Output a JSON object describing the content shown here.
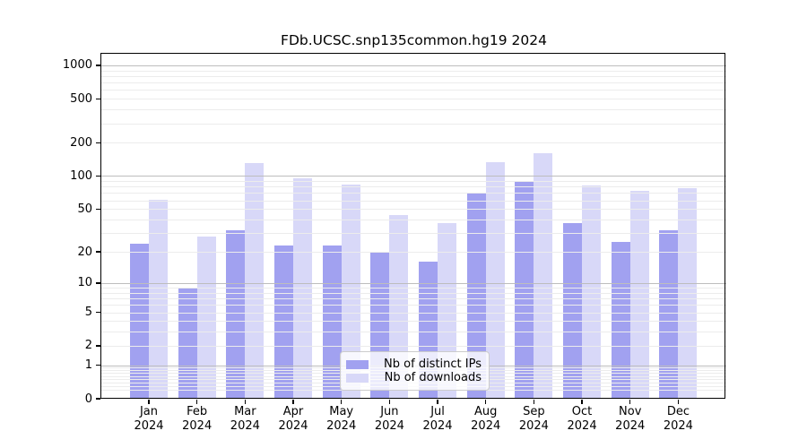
{
  "title": "FDb.UCSC.snp135common.hg19 2024",
  "legend": {
    "items": [
      {
        "label": "Nb of distinct IPs",
        "color": "#a1a1f0"
      },
      {
        "label": "Nb of downloads",
        "color": "#d8d8f8"
      }
    ],
    "position": "lower center"
  },
  "chart_data": {
    "type": "bar",
    "title": "FDb.UCSC.snp135common.hg19 2024",
    "categories": [
      "Jan 2024",
      "Feb 2024",
      "Mar 2024",
      "Apr 2024",
      "May 2024",
      "Jun 2024",
      "Jul 2024",
      "Aug 2024",
      "Sep 2024",
      "Oct 2024",
      "Nov 2024",
      "Dec 2024"
    ],
    "series": [
      {
        "name": "Nb of distinct IPs",
        "color": "#a1a1f0",
        "values": [
          24,
          9,
          32,
          23,
          23,
          20,
          16,
          70,
          88,
          37,
          25,
          32
        ]
      },
      {
        "name": "Nb of downloads",
        "color": "#d8d8f8",
        "values": [
          61,
          28,
          131,
          96,
          84,
          44,
          37,
          134,
          160,
          82,
          73,
          77
        ]
      }
    ],
    "xlabel": "",
    "ylabel": "",
    "yscale": "log1p",
    "y_ticks": [
      0,
      1,
      2,
      5,
      10,
      20,
      50,
      100,
      200,
      500,
      1000
    ],
    "ylim": [
      0,
      1270
    ],
    "grid": "major lines at powers of 10, faint minor lines between, drawn over bars",
    "legend_position": "lower center",
    "colors": {
      "major_grid": "#bdbdbd",
      "minor_grid": "#ececec",
      "axis": "#000000",
      "background": "#ffffff"
    }
  }
}
